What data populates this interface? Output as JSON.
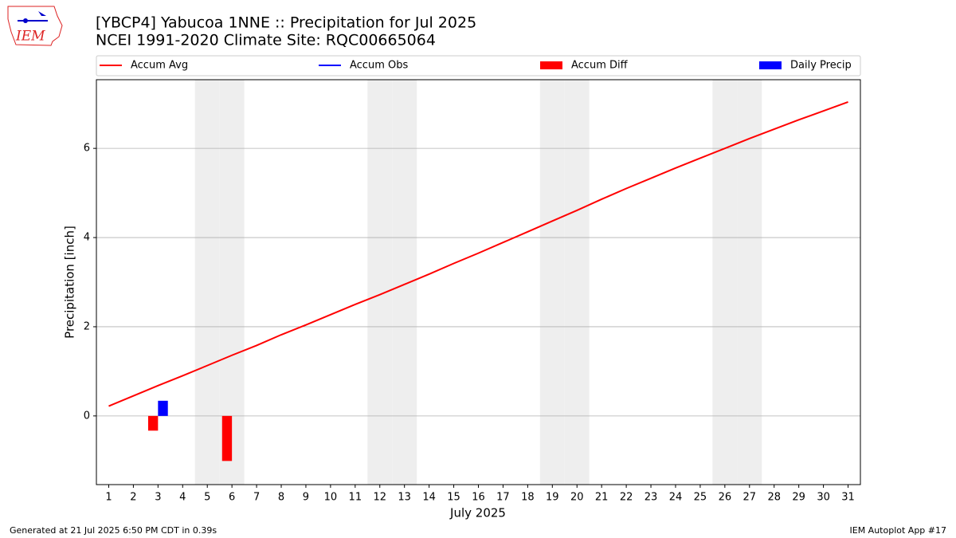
{
  "chart_data": {
    "type": "line",
    "title": "[YBCP4] Yabucoa 1NNE :: Precipitation for Jul 2025",
    "subtitle": "NCEI 1991-2020 Climate Site: RQC00665064",
    "logo_text": "IEM",
    "xlabel": "July 2025",
    "ylabel": "Precipitation [inch]",
    "categories": [
      "1",
      "2",
      "3",
      "4",
      "5",
      "6",
      "7",
      "8",
      "9",
      "10",
      "11",
      "12",
      "13",
      "14",
      "15",
      "16",
      "17",
      "18",
      "19",
      "20",
      "21",
      "22",
      "23",
      "24",
      "25",
      "26",
      "27",
      "28",
      "29",
      "30",
      "31"
    ],
    "series": [
      {
        "name": "Accum Avg",
        "type": "line",
        "color": "#ff0000",
        "values": [
          0.22,
          0.45,
          0.68,
          0.9,
          1.13,
          1.36,
          1.58,
          1.82,
          2.04,
          2.27,
          2.5,
          2.72,
          2.95,
          3.18,
          3.42,
          3.65,
          3.89,
          4.13,
          4.37,
          4.61,
          4.86,
          5.1,
          5.33,
          5.56,
          5.78,
          6.0,
          6.22,
          6.43,
          6.64,
          6.84,
          7.04
        ]
      },
      {
        "name": "Accum Obs",
        "type": "line",
        "color": "#0000ff",
        "values": [
          null,
          null,
          null,
          null,
          null,
          null,
          null,
          null,
          null,
          null,
          null,
          null,
          null,
          null,
          null,
          null,
          null,
          null,
          null,
          null,
          null,
          null,
          null,
          null,
          null,
          null,
          null,
          null,
          null,
          null,
          null
        ]
      },
      {
        "name": "Accum Diff",
        "type": "bar",
        "color": "#ff0000",
        "values": [
          null,
          null,
          -0.33,
          null,
          null,
          -1.01,
          null,
          null,
          null,
          null,
          null,
          null,
          null,
          null,
          null,
          null,
          null,
          null,
          null,
          null,
          null,
          null,
          null,
          null,
          null,
          null,
          null,
          null,
          null,
          null,
          null
        ]
      },
      {
        "name": "Daily Precip",
        "type": "bar",
        "color": "#0000ff",
        "values": [
          null,
          null,
          0.34,
          null,
          null,
          null,
          null,
          null,
          null,
          null,
          null,
          null,
          null,
          null,
          null,
          null,
          null,
          null,
          null,
          null,
          null,
          null,
          null,
          null,
          null,
          null,
          null,
          null,
          null,
          null,
          null
        ]
      }
    ],
    "ylim": [
      -1.54,
      7.54
    ],
    "yticks": [
      0,
      2,
      4,
      6
    ],
    "grid": true,
    "legend": "top",
    "weekend_shading": "#eeeeee",
    "footer_left": "Generated at 21 Jul 2025 6:50 PM CDT in 0.39s",
    "footer_right": "IEM Autoplot App #17"
  }
}
